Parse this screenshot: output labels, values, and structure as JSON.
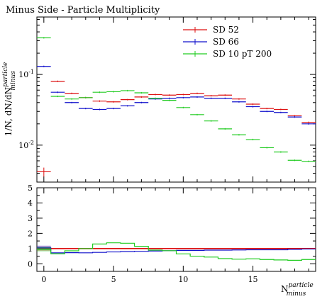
{
  "chart_data": {
    "type": "line",
    "title": "Minus Side - Particle Multiplicity",
    "ylabel": "1/N dN/dN^{particle}_{minus}",
    "xlabel": "N^{particle}_{minus}",
    "ylabel_main": "1/N, dN/dN",
    "ylabel_sup": "particle",
    "ylabel_sub": "minus",
    "xlabel_main": "N",
    "xlabel_sup": "particle",
    "xlabel_sub": "minus",
    "log_y": true,
    "xlim": [
      -0.5,
      19.5
    ],
    "ylim": [
      0.003,
      0.65
    ],
    "ratio_ylim": [
      -0.5,
      5
    ],
    "x_ticks": [
      "0",
      "5",
      "10",
      "15"
    ],
    "y_ticks": [
      "10^{-1}",
      "10^{-2}"
    ],
    "ratio_ticks": [
      "0",
      "1",
      "2",
      "3",
      "4",
      "5"
    ],
    "legend_position": "top-right",
    "x": [
      0,
      1,
      2,
      3,
      4,
      5,
      6,
      7,
      8,
      9,
      10,
      11,
      12,
      13,
      14,
      15,
      16,
      17,
      18,
      19
    ],
    "series": [
      {
        "name": "SD 52",
        "color": "#dd1111",
        "values": [
          0.0042,
          0.08,
          0.054,
          0.047,
          0.042,
          0.041,
          0.044,
          0.048,
          0.052,
          0.051,
          0.052,
          0.054,
          0.05,
          0.051,
          0.045,
          0.038,
          0.033,
          0.032,
          0.026,
          0.021
        ],
        "ratio": [
          1,
          1,
          1,
          1,
          1,
          1,
          1,
          1,
          1,
          1,
          1,
          1,
          1,
          1,
          1,
          1,
          1,
          1,
          1,
          1
        ]
      },
      {
        "name": "SD 66",
        "color": "#1111cc",
        "values": [
          0.13,
          0.056,
          0.04,
          0.033,
          0.032,
          0.033,
          0.036,
          0.04,
          0.045,
          0.046,
          0.047,
          0.048,
          0.046,
          0.046,
          0.041,
          0.035,
          0.03,
          0.029,
          0.025,
          0.02
        ],
        "ratio": [
          1.05,
          0.72,
          0.73,
          0.72,
          0.75,
          0.78,
          0.8,
          0.82,
          0.84,
          0.86,
          0.88,
          0.88,
          0.9,
          0.9,
          0.91,
          0.92,
          0.92,
          0.92,
          0.95,
          0.97
        ]
      },
      {
        "name": "SD 10 pT 200",
        "color": "#22cc22",
        "values": [
          0.33,
          0.049,
          0.045,
          0.047,
          0.056,
          0.057,
          0.059,
          0.055,
          0.046,
          0.043,
          0.034,
          0.027,
          0.022,
          0.017,
          0.014,
          0.012,
          0.0092,
          0.008,
          0.0061,
          0.0059
        ],
        "ratio": [
          0.95,
          0.66,
          0.85,
          1.0,
          1.3,
          1.38,
          1.35,
          1.15,
          0.9,
          0.86,
          0.65,
          0.5,
          0.44,
          0.34,
          0.3,
          0.32,
          0.28,
          0.25,
          0.23,
          0.28
        ]
      }
    ]
  }
}
